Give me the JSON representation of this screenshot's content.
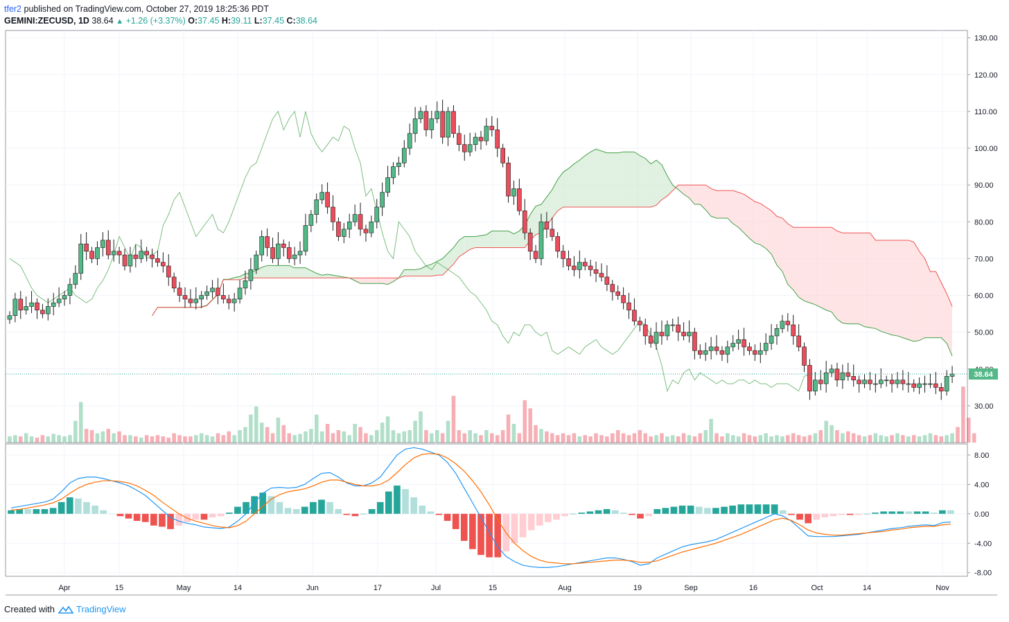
{
  "header": {
    "author": "tfer2",
    "published": " published on TradingView.com, October 27, 2019 18:25:36 PDT",
    "symbol": "GEMINI:ZECUSD, 1D",
    "last": "38.64",
    "change": "+1.26 (+3.37%)",
    "o_label": "O:",
    "o": "37.45",
    "h_label": "H:",
    "h": "39.11",
    "l_label": "L:",
    "l": "37.45",
    "c_label": "C:",
    "c": "38.64"
  },
  "footer": {
    "created_with": "Created with",
    "brand": "TradingView"
  },
  "colors": {
    "up": "#26a69a",
    "down": "#ef5350",
    "candle_up": "#53b987",
    "candle_down": "#eb4d5c",
    "macd": "#2196f3",
    "signal": "#ff6d00",
    "cloud_bull": "#c8e6c9",
    "cloud_bear": "#ffcdd2",
    "lagging": "#43a047"
  },
  "chart_data": [
    {
      "type": "candlestick",
      "title": "GEMINI:ZECUSD, 1D",
      "ylim": [
        20,
        132
      ],
      "y_ticks": [
        "130.00",
        "120.00",
        "110.00",
        "100.00",
        "90.00",
        "80.00",
        "70.00",
        "60.00",
        "50.00",
        "40.00",
        "30.00"
      ],
      "x_ticks": [
        "Apr",
        "15",
        "May",
        "14",
        "Jun",
        "17",
        "Jul",
        "15",
        "Aug",
        "19",
        "Sep",
        "16",
        "Oct",
        "14",
        "Nov"
      ],
      "last_price_label": "38.64",
      "close": [
        54.5,
        59,
        56,
        57,
        58,
        56,
        55,
        57,
        58,
        59,
        60,
        63,
        66,
        74,
        72,
        70,
        73,
        75,
        71,
        72,
        71,
        68,
        71,
        70,
        72,
        71,
        70,
        69,
        68,
        65,
        62,
        60,
        59,
        58,
        59,
        60,
        61,
        62,
        60,
        59,
        58,
        59,
        62,
        64,
        67,
        71,
        76,
        73,
        70,
        74,
        73,
        70,
        71,
        72,
        79,
        82,
        86,
        88,
        84,
        80,
        76,
        78,
        80,
        82,
        78,
        77,
        80,
        84,
        88,
        92,
        95,
        96,
        100,
        104,
        108,
        110,
        105,
        108,
        110,
        103,
        110,
        104,
        101,
        99,
        101,
        103,
        102,
        106,
        105,
        100,
        96,
        87,
        89,
        83,
        77,
        72,
        70,
        80,
        78,
        76,
        72,
        70,
        68,
        67,
        69,
        68,
        67,
        66,
        65,
        63,
        61,
        60,
        58,
        56,
        53,
        52,
        49,
        47,
        50,
        49,
        52,
        52,
        50,
        49,
        50,
        45,
        44,
        45,
        46,
        45,
        44,
        46,
        47,
        48,
        46,
        45,
        44,
        45,
        47,
        49,
        51,
        53,
        52,
        49,
        46,
        41,
        34,
        37,
        36,
        39,
        40,
        37,
        39,
        38,
        37,
        36,
        37,
        36,
        36,
        37,
        37,
        36,
        37,
        36,
        36,
        35,
        36,
        36,
        36,
        35,
        34,
        38,
        38.64
      ],
      "volume_relative": [
        0.1,
        0.12,
        0.1,
        0.15,
        0.1,
        0.08,
        0.12,
        0.1,
        0.14,
        0.12,
        0.1,
        0.12,
        0.35,
        0.65,
        0.22,
        0.2,
        0.15,
        0.18,
        0.22,
        0.15,
        0.18,
        0.12,
        0.12,
        0.1,
        0.08,
        0.12,
        0.1,
        0.12,
        0.1,
        0.08,
        0.15,
        0.12,
        0.1,
        0.1,
        0.12,
        0.15,
        0.12,
        0.1,
        0.15,
        0.12,
        0.18,
        0.12,
        0.2,
        0.25,
        0.45,
        0.58,
        0.32,
        0.25,
        0.15,
        0.4,
        0.28,
        0.15,
        0.12,
        0.14,
        0.18,
        0.22,
        0.45,
        0.18,
        0.3,
        0.15,
        0.2,
        0.18,
        0.12,
        0.3,
        0.25,
        0.15,
        0.12,
        0.2,
        0.32,
        0.42,
        0.2,
        0.15,
        0.18,
        0.2,
        0.35,
        0.5,
        0.2,
        0.15,
        0.2,
        0.15,
        0.35,
        0.75,
        0.2,
        0.15,
        0.2,
        0.15,
        0.12,
        0.2,
        0.15,
        0.12,
        0.2,
        0.45,
        0.3,
        0.15,
        0.68,
        0.55,
        0.28,
        0.22,
        0.18,
        0.15,
        0.12,
        0.15,
        0.12,
        0.15,
        0.1,
        0.12,
        0.1,
        0.15,
        0.12,
        0.1,
        0.15,
        0.2,
        0.15,
        0.12,
        0.15,
        0.2,
        0.15,
        0.1,
        0.12,
        0.15,
        0.1,
        0.12,
        0.1,
        0.15,
        0.12,
        0.1,
        0.15,
        0.2,
        0.38,
        0.15,
        0.1,
        0.15,
        0.12,
        0.1,
        0.15,
        0.12,
        0.1,
        0.12,
        0.15,
        0.1,
        0.12,
        0.1,
        0.12,
        0.15,
        0.12,
        0.1,
        0.12,
        0.15,
        0.2,
        0.35,
        0.28,
        0.2,
        0.15,
        0.18,
        0.15,
        0.12,
        0.1,
        0.12,
        0.15,
        0.12,
        0.1,
        0.12,
        0.15,
        0.12,
        0.1,
        0.12,
        0.1,
        0.12,
        0.15,
        0.12,
        0.1,
        0.12,
        0.15,
        0.25,
        0.9,
        0.4,
        0.15
      ]
    },
    {
      "type": "line",
      "title": "MACD",
      "ylim": [
        -8.5,
        9.5
      ],
      "y_ticks": [
        "8.00",
        "4.00",
        "0.00",
        "-4.00",
        "-8.00"
      ],
      "series": [
        {
          "values": [
            0.8,
            1,
            1.2,
            1.4,
            1.6,
            2,
            3,
            4.2,
            4.8,
            5,
            5,
            4.8,
            4.5,
            4.2,
            3.8,
            3.2,
            2.5,
            1.5,
            0.5,
            -0.5,
            -1,
            -1.3,
            -1.5,
            -1.8,
            -1.9,
            -2,
            -1.8,
            -1,
            0,
            1.5,
            2.8,
            3.5,
            3.6,
            3.5,
            3.6,
            4,
            4.8,
            5.5,
            5.6,
            5,
            4.2,
            3.8,
            3.8,
            4.2,
            5,
            6.5,
            8,
            8.8,
            9,
            8.8,
            8.4,
            8,
            7,
            5.5,
            3.5,
            1.5,
            -0.5,
            -2.5,
            -4.5,
            -5.8,
            -6.5,
            -7,
            -7.2,
            -7.3,
            -7.3,
            -7.2,
            -7,
            -6.8,
            -6.6,
            -6.4,
            -6.2,
            -6,
            -6,
            -6.2,
            -6.5,
            -7,
            -6.8,
            -6,
            -5.5,
            -5,
            -4.5,
            -4.2,
            -4,
            -3.8,
            -3.5,
            -3,
            -2.5,
            -2,
            -1.5,
            -1,
            -0.5,
            0,
            -0.3,
            -1,
            -2,
            -3,
            -3.1,
            -3.1,
            -3.1,
            -3,
            -2.9,
            -2.8,
            -2.6,
            -2.4,
            -2.2,
            -2,
            -1.9,
            -1.7,
            -1.6,
            -1.5,
            -1.6,
            -1.2,
            -1.1
          ]
        },
        {
          "values": [
            0.5,
            0.6,
            0.8,
            1,
            1.2,
            1.5,
            2,
            2.8,
            3.5,
            4,
            4.3,
            4.5,
            4.5,
            4.4,
            4.2,
            3.8,
            3.2,
            2.5,
            1.6,
            0.8,
            0,
            -0.6,
            -1,
            -1.3,
            -1.6,
            -1.8,
            -1.9,
            -1.6,
            -1,
            0,
            1,
            2,
            2.6,
            3,
            3.2,
            3.4,
            3.8,
            4.3,
            4.6,
            4.6,
            4.3,
            4,
            3.8,
            3.8,
            4,
            4.6,
            5.6,
            6.7,
            7.6,
            8.1,
            8.2,
            8.1,
            7.6,
            6.8,
            5.8,
            4.5,
            3,
            1.2,
            -0.8,
            -2.6,
            -4,
            -5,
            -5.8,
            -6.3,
            -6.6,
            -6.7,
            -6.8,
            -6.8,
            -6.7,
            -6.6,
            -6.5,
            -6.4,
            -6.3,
            -6.3,
            -6.4,
            -6.6,
            -6.6,
            -6.4,
            -6,
            -5.6,
            -5.2,
            -4.9,
            -4.6,
            -4.3,
            -4,
            -3.6,
            -3.2,
            -2.8,
            -2.3,
            -1.8,
            -1.3,
            -0.8,
            -0.6,
            -0.9,
            -1.5,
            -2.2,
            -2.6,
            -2.8,
            -2.9,
            -2.9,
            -2.8,
            -2.7,
            -2.6,
            -2.5,
            -2.4,
            -2.2,
            -2.1,
            -1.9,
            -1.8,
            -1.7,
            -1.7,
            -1.5,
            -1.4
          ]
        }
      ]
    }
  ]
}
